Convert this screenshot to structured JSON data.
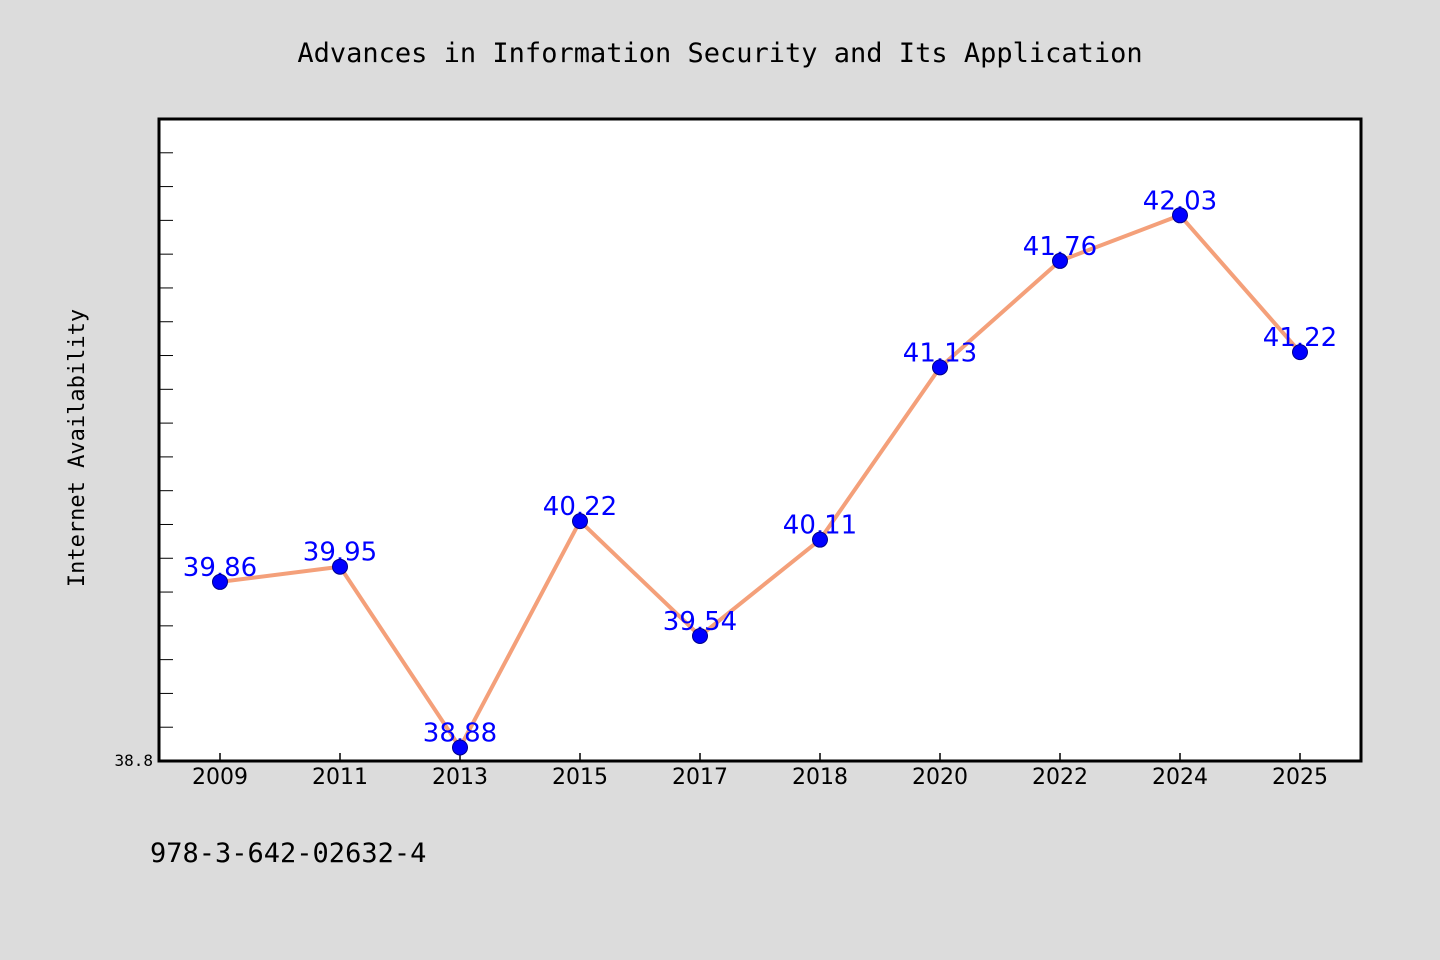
{
  "chart_data": {
    "type": "line",
    "title": "Advances in Information Security and Its Application",
    "xlabel": "",
    "ylabel": "Internet Availability",
    "categories": [
      "2009",
      "2011",
      "2013",
      "2015",
      "2017",
      "2018",
      "2020",
      "2022",
      "2024",
      "2025"
    ],
    "series": [
      {
        "values": [
          39.86,
          39.95,
          38.88,
          40.22,
          39.54,
          40.11,
          41.13,
          41.76,
          42.03,
          41.22
        ]
      }
    ],
    "data_labels": [
      "39.86",
      "39.95",
      "38.88",
      "40.22",
      "39.54",
      "40.11",
      "41.13",
      "41.76",
      "42.03",
      "41.22"
    ],
    "ylim": [
      38.8,
      42.6
    ],
    "yticks_labeled": [
      "38.8"
    ],
    "grid": false,
    "legend": "none",
    "colors": {
      "line": "#f4a07a",
      "marker": "#0000ff",
      "marker_edge": "#00008b",
      "label": "#0000ff",
      "background": "#dcdcdc",
      "plot_area": "#ffffff"
    }
  },
  "footnote": "978-3-642-02632-4"
}
